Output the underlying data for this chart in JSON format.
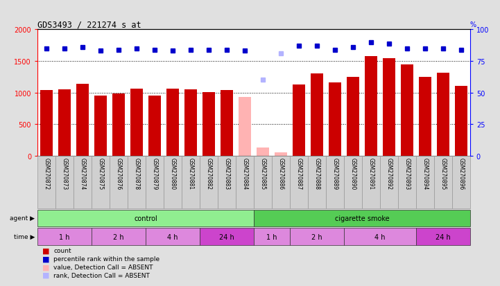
{
  "title": "GDS3493 / 221274_s_at",
  "samples": [
    "GSM270872",
    "GSM270873",
    "GSM270874",
    "GSM270875",
    "GSM270876",
    "GSM270878",
    "GSM270879",
    "GSM270880",
    "GSM270881",
    "GSM270882",
    "GSM270883",
    "GSM270884",
    "GSM270885",
    "GSM270886",
    "GSM270887",
    "GSM270888",
    "GSM270889",
    "GSM270890",
    "GSM270891",
    "GSM270892",
    "GSM270893",
    "GSM270894",
    "GSM270895",
    "GSM270896"
  ],
  "counts": [
    1040,
    1045,
    1140,
    955,
    980,
    1060,
    955,
    1060,
    1055,
    1005,
    1040,
    930,
    130,
    50,
    1130,
    1300,
    1160,
    1250,
    1580,
    1540,
    1450,
    1250,
    1310,
    1100
  ],
  "absent_count": [
    false,
    false,
    false,
    false,
    false,
    false,
    false,
    false,
    false,
    false,
    false,
    true,
    true,
    true,
    false,
    false,
    false,
    false,
    false,
    false,
    false,
    false,
    false,
    false
  ],
  "percentile_ranks": [
    85,
    85,
    86,
    83,
    84,
    85,
    84,
    83,
    84,
    84,
    84,
    83,
    60,
    81,
    87,
    87,
    84,
    86,
    90,
    89,
    85,
    85,
    85,
    84
  ],
  "absent_rank": [
    false,
    false,
    false,
    false,
    false,
    false,
    false,
    false,
    false,
    false,
    false,
    false,
    true,
    true,
    false,
    false,
    false,
    false,
    false,
    false,
    false,
    false,
    false,
    false
  ],
  "ylim_left": [
    0,
    2000
  ],
  "ylim_right": [
    0,
    100
  ],
  "yticks_left": [
    0,
    500,
    1000,
    1500,
    2000
  ],
  "yticks_right": [
    0,
    25,
    50,
    75,
    100
  ],
  "bar_color_present": "#cc0000",
  "bar_color_absent": "#ffb3b3",
  "dot_color_present": "#0000cc",
  "dot_color_absent": "#b3b3ff",
  "agent_groups": [
    {
      "label": "control",
      "start": 0,
      "end": 11,
      "color": "#90ee90"
    },
    {
      "label": "cigarette smoke",
      "start": 12,
      "end": 23,
      "color": "#55cc55"
    }
  ],
  "time_groups": [
    {
      "label": "1 h",
      "start": 0,
      "end": 2,
      "color": "#dd88dd"
    },
    {
      "label": "2 h",
      "start": 3,
      "end": 5,
      "color": "#dd88dd"
    },
    {
      "label": "4 h",
      "start": 6,
      "end": 8,
      "color": "#dd88dd"
    },
    {
      "label": "24 h",
      "start": 9,
      "end": 11,
      "color": "#cc44cc"
    },
    {
      "label": "1 h",
      "start": 12,
      "end": 13,
      "color": "#dd88dd"
    },
    {
      "label": "2 h",
      "start": 14,
      "end": 16,
      "color": "#dd88dd"
    },
    {
      "label": "4 h",
      "start": 17,
      "end": 20,
      "color": "#dd88dd"
    },
    {
      "label": "24 h",
      "start": 21,
      "end": 23,
      "color": "#cc44cc"
    }
  ],
  "legend_items": [
    {
      "label": "count",
      "color": "#cc0000"
    },
    {
      "label": "percentile rank within the sample",
      "color": "#0000cc"
    },
    {
      "label": "value, Detection Call = ABSENT",
      "color": "#ffb3b3"
    },
    {
      "label": "rank, Detection Call = ABSENT",
      "color": "#b3b3ff"
    }
  ],
  "background_color": "#e0e0e0",
  "plot_bg_color": "#ffffff"
}
